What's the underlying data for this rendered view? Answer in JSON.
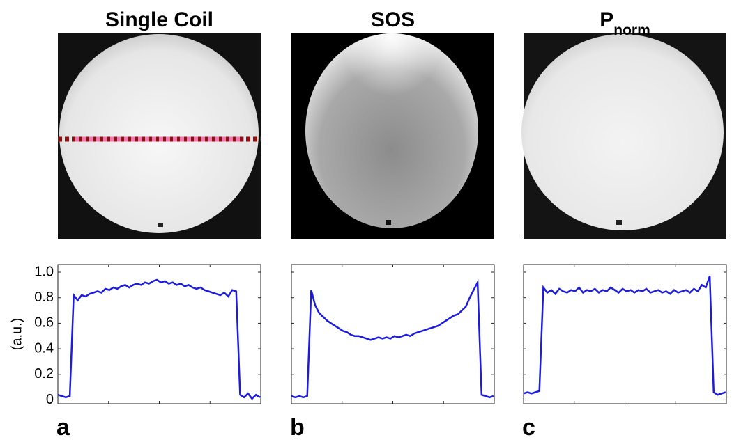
{
  "chart_data": [
    {
      "type": "line",
      "title": "Single Coil",
      "panel_label": "a",
      "ylabel": "(a.u.)",
      "ytick_labels": true,
      "x": [
        0,
        5,
        10,
        15,
        20,
        25,
        30,
        35,
        40,
        45,
        50,
        55,
        60,
        65,
        70,
        75,
        80,
        85,
        90,
        95,
        100,
        105,
        110,
        115,
        120,
        125,
        130,
        135,
        140,
        145,
        150,
        155,
        160,
        165,
        170,
        175,
        180,
        185,
        190,
        195,
        200,
        205,
        210,
        215,
        220,
        225,
        230,
        235,
        240,
        245,
        250,
        255
      ],
      "series": [
        {
          "color": "#1c1ce0",
          "values": [
            0.04,
            0.03,
            0.02,
            0.03,
            0.82,
            0.78,
            0.82,
            0.81,
            0.83,
            0.84,
            0.85,
            0.84,
            0.87,
            0.86,
            0.88,
            0.87,
            0.89,
            0.9,
            0.88,
            0.9,
            0.91,
            0.9,
            0.92,
            0.91,
            0.93,
            0.94,
            0.92,
            0.93,
            0.91,
            0.92,
            0.9,
            0.91,
            0.89,
            0.9,
            0.88,
            0.87,
            0.88,
            0.86,
            0.85,
            0.84,
            0.83,
            0.82,
            0.84,
            0.81,
            0.86,
            0.85,
            0.04,
            0.02,
            0.05,
            0.01,
            0.04,
            0.02
          ]
        }
      ],
      "xlim": [
        0,
        256
      ],
      "xticks": [
        64,
        128,
        192
      ],
      "ylim": [
        -0.03,
        1.06
      ],
      "yticks": [
        0,
        0.2,
        0.4,
        0.6,
        0.8,
        {
          "value": 1,
          "label": "1.0"
        }
      ]
    },
    {
      "type": "line",
      "title": "SOS",
      "panel_label": "b",
      "ytick_labels": false,
      "x": [
        0,
        5,
        10,
        15,
        20,
        25,
        30,
        35,
        40,
        45,
        50,
        55,
        60,
        65,
        70,
        75,
        80,
        85,
        90,
        95,
        100,
        105,
        110,
        115,
        120,
        125,
        130,
        135,
        140,
        145,
        150,
        155,
        160,
        165,
        170,
        175,
        180,
        185,
        190,
        195,
        200,
        205,
        210,
        215,
        220,
        225,
        230,
        235,
        240,
        245,
        250,
        255
      ],
      "series": [
        {
          "color": "#1c1ce0",
          "values": [
            0.03,
            0.02,
            0.03,
            0.02,
            0.03,
            0.86,
            0.74,
            0.68,
            0.65,
            0.62,
            0.6,
            0.58,
            0.56,
            0.54,
            0.53,
            0.51,
            0.5,
            0.5,
            0.49,
            0.48,
            0.47,
            0.48,
            0.49,
            0.48,
            0.49,
            0.48,
            0.5,
            0.49,
            0.5,
            0.51,
            0.5,
            0.52,
            0.53,
            0.54,
            0.55,
            0.56,
            0.57,
            0.58,
            0.6,
            0.62,
            0.64,
            0.66,
            0.67,
            0.7,
            0.73,
            0.8,
            0.86,
            0.92,
            0.04,
            0.03,
            0.02,
            0.03
          ]
        }
      ],
      "xlim": [
        0,
        256
      ],
      "xticks": [
        64,
        128,
        192
      ],
      "ylim": [
        -0.03,
        1.06
      ],
      "yticks": [
        0,
        0.2,
        0.4,
        0.6,
        0.8,
        1
      ]
    },
    {
      "type": "line",
      "title": "P",
      "title_subscript": "norm",
      "panel_label": "c",
      "ytick_labels": false,
      "x": [
        0,
        5,
        10,
        15,
        20,
        25,
        30,
        35,
        40,
        45,
        50,
        55,
        60,
        65,
        70,
        75,
        80,
        85,
        90,
        95,
        100,
        105,
        110,
        115,
        120,
        125,
        130,
        135,
        140,
        145,
        150,
        155,
        160,
        165,
        170,
        175,
        180,
        185,
        190,
        195,
        200,
        205,
        210,
        215,
        220,
        225,
        230,
        235,
        240,
        245,
        250,
        255
      ],
      "series": [
        {
          "color": "#1c1ce0",
          "values": [
            0.05,
            0.06,
            0.05,
            0.06,
            0.07,
            0.88,
            0.84,
            0.86,
            0.83,
            0.87,
            0.85,
            0.84,
            0.86,
            0.85,
            0.88,
            0.84,
            0.86,
            0.85,
            0.87,
            0.84,
            0.86,
            0.85,
            0.88,
            0.86,
            0.84,
            0.87,
            0.85,
            0.86,
            0.84,
            0.86,
            0.85,
            0.87,
            0.84,
            0.85,
            0.86,
            0.84,
            0.85,
            0.83,
            0.86,
            0.84,
            0.85,
            0.86,
            0.84,
            0.87,
            0.85,
            0.9,
            0.88,
            0.97,
            0.06,
            0.04,
            0.05,
            0.06
          ]
        }
      ],
      "xlim": [
        0,
        256
      ],
      "xticks": [
        64,
        128,
        192
      ],
      "ylim": [
        -0.03,
        1.06
      ],
      "yticks": [
        0,
        0.2,
        0.4,
        0.6,
        0.8,
        1
      ]
    }
  ]
}
